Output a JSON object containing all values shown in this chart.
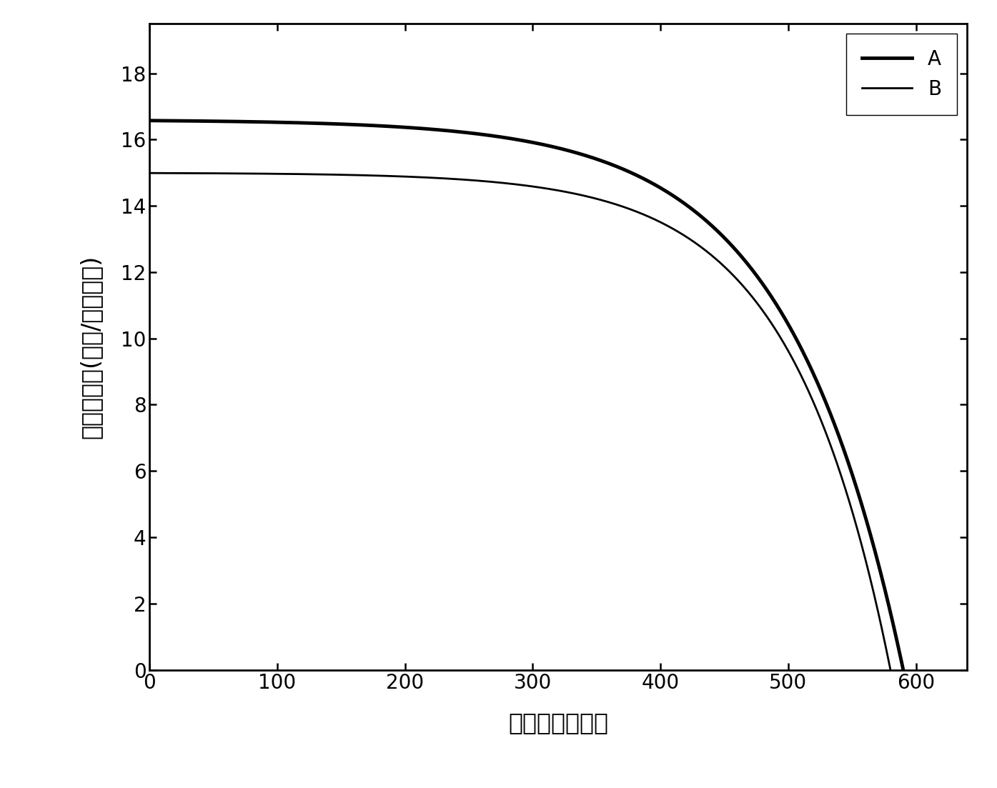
{
  "xlabel": "光电压（毫伏）",
  "ylabel": "光电流密度(毫安/平方厘米)",
  "xlim": [
    0,
    640
  ],
  "ylim": [
    0,
    19.5
  ],
  "xticks": [
    0,
    100,
    200,
    300,
    400,
    500,
    600
  ],
  "yticks": [
    0,
    2,
    4,
    6,
    8,
    10,
    12,
    14,
    16,
    18
  ],
  "curve_A": {
    "jsc": 16.6,
    "voc": 590,
    "label": "A",
    "linewidth": 3.5,
    "color": "#000000",
    "ideality": 3.5
  },
  "curve_B": {
    "jsc": 15.0,
    "voc": 580,
    "label": "B",
    "linewidth": 2.0,
    "color": "#000000",
    "ideality": 3.0
  },
  "legend_fontsize": 20,
  "axis_fontsize": 24,
  "tick_fontsize": 20,
  "background_color": "#ffffff",
  "spine_linewidth": 2.0
}
